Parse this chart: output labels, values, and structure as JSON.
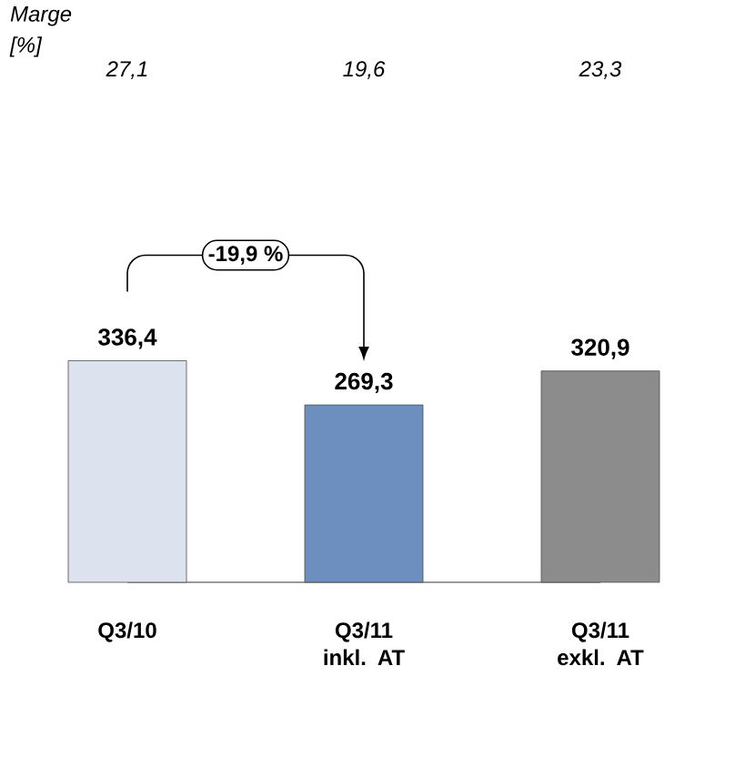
{
  "chart_data": {
    "type": "bar",
    "categories": [
      "Q3/10",
      "Q3/11 inkl. AT",
      "Q3/11 exkl. AT"
    ],
    "values": [
      336.4,
      269.3,
      320.9
    ],
    "colors": [
      "#dce3ee",
      "#6d8fbf",
      "#8c8c8c"
    ],
    "value_labels": [
      "336,4",
      "269,3",
      "320,9"
    ],
    "annotations": [
      "Marge [%]",
      "27,1",
      "19,6",
      "23,3",
      "-19,9 %"
    ]
  }
}
